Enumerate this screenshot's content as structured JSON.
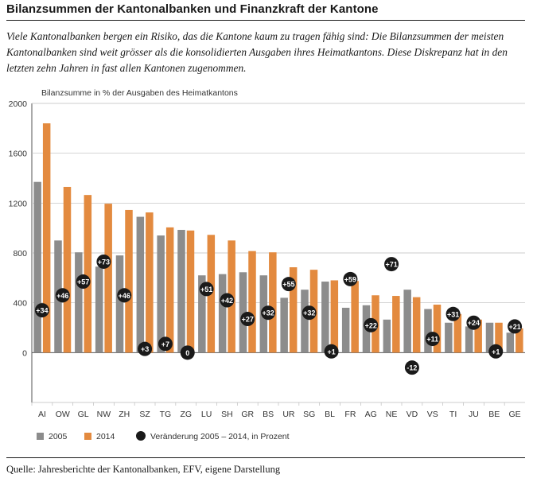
{
  "header": {
    "title": "Bilanzsummen der Kantonalbanken und Finanzkraft der Kantone",
    "subtitle": "Viele Kantonalbanken bergen ein Risiko, das die Kantone kaum zu tragen fähig sind: Die Bilanzsummen der meisten Kantonalbanken sind weit grösser als die konsolidierten Ausgaben ihres Heimatkantons. Diese Diskrepanz hat in den letzten zehn Jahren in fast allen Kantonen zugenommen."
  },
  "footer": {
    "source": "Quelle: Jahresberichte der Kantonalbanken, EFV, eigene Darstellung"
  },
  "chart_data": {
    "type": "bar",
    "ylabel": "Bilanzsumme in % der Ausgaben des Heimatkantons",
    "ylim": [
      -400,
      2000
    ],
    "yticks": [
      0,
      400,
      800,
      1200,
      1600,
      2000
    ],
    "grid": true,
    "legend_position": "bottom",
    "categories": [
      "AI",
      "OW",
      "GL",
      "NW",
      "ZH",
      "SZ",
      "TG",
      "ZG",
      "LU",
      "SH",
      "GR",
      "BS",
      "UR",
      "SG",
      "BL",
      "FR",
      "AG",
      "NE",
      "VD",
      "VS",
      "TI",
      "JU",
      "BE",
      "GE"
    ],
    "series": [
      {
        "name": "2005",
        "color": "#8c8c8c",
        "values": [
          1370,
          900,
          805,
          690,
          780,
          1090,
          940,
          985,
          620,
          630,
          645,
          620,
          440,
          505,
          570,
          360,
          380,
          265,
          505,
          350,
          240,
          210,
          240,
          160
        ]
      },
      {
        "name": "2014",
        "color": "#e38a3f",
        "values": [
          1840,
          1330,
          1265,
          1195,
          1145,
          1125,
          1005,
          980,
          945,
          900,
          815,
          805,
          685,
          665,
          580,
          575,
          460,
          455,
          445,
          385,
          310,
          265,
          240,
          195
        ]
      }
    ],
    "change_series": {
      "name": "Veränderung 2005 – 2014, in Prozent",
      "color": "#1a1a1a",
      "labels": [
        "+34",
        "+46",
        "+57",
        "+73",
        "+46",
        "+3",
        "+7",
        "0",
        "+51",
        "+42",
        "+27",
        "+32",
        "+55",
        "+32",
        "+1",
        "+59",
        "+22",
        "+71",
        "-12",
        "+11",
        "+31",
        "+24",
        "+1",
        "+21"
      ],
      "values": [
        34,
        46,
        57,
        73,
        46,
        3,
        7,
        0,
        51,
        42,
        27,
        32,
        55,
        32,
        1,
        59,
        22,
        71,
        -12,
        11,
        31,
        24,
        1,
        21
      ]
    }
  }
}
